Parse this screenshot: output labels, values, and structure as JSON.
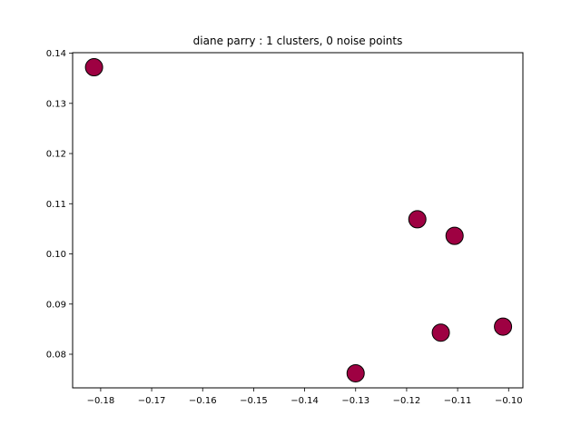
{
  "chart_data": {
    "type": "scatter",
    "title": "diane parry : 1 clusters, 0 noise points",
    "xlabel": "",
    "ylabel": "",
    "xlim": [
      -0.1855,
      -0.0972
    ],
    "ylim": [
      0.0733,
      0.1401
    ],
    "xticks": [
      -0.18,
      -0.17,
      -0.16,
      -0.15,
      -0.14,
      -0.13,
      -0.12,
      -0.11,
      -0.1
    ],
    "xtick_labels": [
      "−0.18",
      "−0.17",
      "−0.16",
      "−0.15",
      "−0.14",
      "−0.13",
      "−0.12",
      "−0.11",
      "−0.10"
    ],
    "yticks": [
      0.08,
      0.09,
      0.1,
      0.11,
      0.12,
      0.13,
      0.14
    ],
    "ytick_labels": [
      "0.08",
      "0.09",
      "0.10",
      "0.11",
      "0.12",
      "0.13",
      "0.14"
    ],
    "grid": false,
    "series": [
      {
        "color": "#9e0142",
        "edge_color": "#000000",
        "points": [
          {
            "x": -0.1813,
            "y": 0.1372
          },
          {
            "x": -0.1179,
            "y": 0.1069
          },
          {
            "x": -0.1106,
            "y": 0.1036
          },
          {
            "x": -0.1011,
            "y": 0.0855
          },
          {
            "x": -0.1133,
            "y": 0.0843
          },
          {
            "x": -0.13,
            "y": 0.0762
          }
        ]
      }
    ]
  }
}
